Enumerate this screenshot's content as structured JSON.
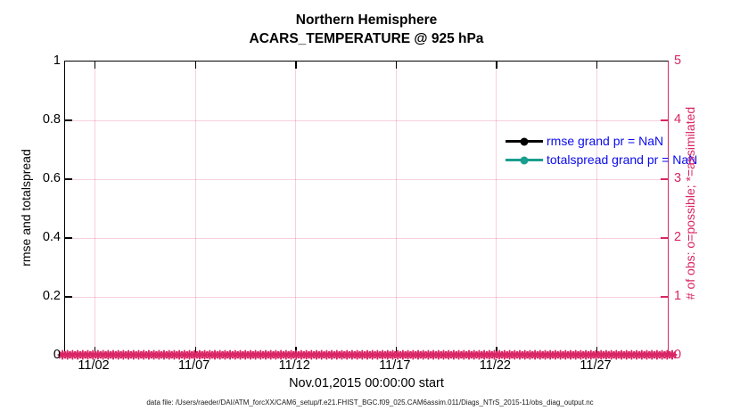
{
  "figure": {
    "title_line1": "Northern Hemisphere",
    "title_line2": "ACARS_TEMPERATURE @ 925 hPa",
    "footer": "data file: /Users/raeder/DAI/ATM_forcXX/CAM6_setup/f.e21.FHIST_BGC.f09_025.CAM6assim.011/Diags_NTrS_2015-11/obs_diag_output.nc"
  },
  "axes": {
    "x": {
      "label": "Nov.01,2015 00:00:00 start",
      "tick_labels": [
        "11/02",
        "11/07",
        "11/12",
        "11/17",
        "11/22",
        "11/27"
      ]
    },
    "y_left": {
      "label": "rmse and totalspread",
      "tick_labels": [
        "0",
        "0.2",
        "0.4",
        "0.6",
        "0.8",
        "1"
      ],
      "range": [
        0,
        1
      ],
      "color": "#000000"
    },
    "y_right": {
      "label": "# of obs: o=possible; *=assimilated",
      "tick_labels": [
        "0",
        "1",
        "2",
        "3",
        "4",
        "5"
      ],
      "range": [
        0,
        5
      ],
      "color": "#d92565"
    }
  },
  "legend": {
    "text_color": "#0b0bee",
    "items": [
      {
        "label": "rmse grand pr = NaN",
        "color": "#000000",
        "marker": "filled-circle"
      },
      {
        "label": "totalspread grand pr = NaN",
        "color": "#1a9e8f",
        "marker": "filled-circle"
      }
    ]
  },
  "colors": {
    "right_axis_accent": "#d92565",
    "grid": "rgba(217,37,101,0.22)",
    "obs_marker": "#d92565"
  },
  "chart_data": {
    "type": "line",
    "title": "Northern Hemisphere",
    "subtitle": "ACARS_TEMPERATURE @ 925 hPa",
    "xlabel": "Nov.01,2015 00:00:00 start",
    "x_tick_labels": [
      "11/02",
      "11/07",
      "11/12",
      "11/17",
      "11/22",
      "11/27"
    ],
    "ylabel_left": "rmse and totalspread",
    "ylim_left": [
      0,
      1
    ],
    "ylabel_right": "# of obs: o=possible; *=assimilated",
    "ylim_right": [
      0,
      5
    ],
    "grid": true,
    "legend_position": "top-right-inside",
    "series": [
      {
        "name": "rmse grand pr = NaN",
        "axis": "left",
        "marker": "filled-circle",
        "color": "#000000",
        "values": [],
        "note": "all values NaN — no curve plotted"
      },
      {
        "name": "totalspread grand pr = NaN",
        "axis": "left",
        "marker": "filled-circle",
        "color": "#1a9e8f",
        "values": [],
        "note": "all values NaN — no curve plotted"
      },
      {
        "name": "# of obs (*=assimilated)",
        "axis": "right",
        "marker": "asterisk",
        "color": "#d92565",
        "constant_value": 0,
        "marker_count": 121,
        "note": "dense row of asterisk markers at y=0 spanning the full x range"
      }
    ]
  }
}
